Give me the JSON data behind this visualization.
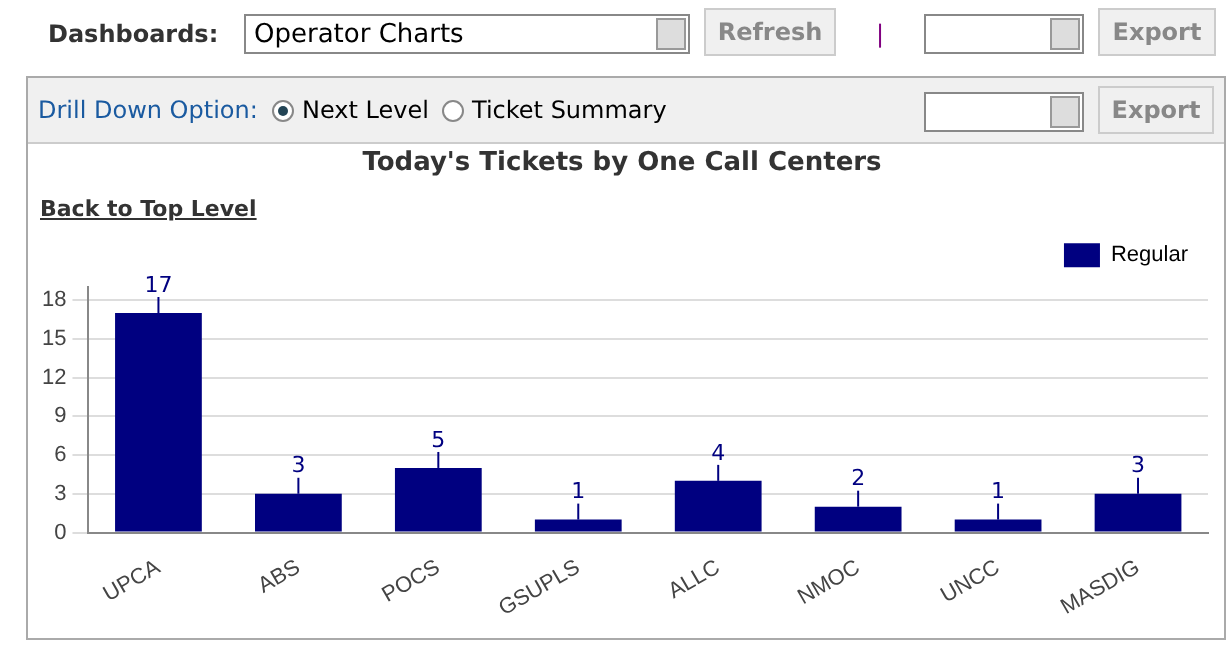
{
  "chart_data": {
    "type": "bar",
    "title": "Today's Tickets by One Call Centers",
    "categories": [
      "UPCA",
      "ABS",
      "POCS",
      "GSUPLS",
      "ALLC",
      "NMOC",
      "UNCC",
      "MASDIG"
    ],
    "series": [
      {
        "name": "Regular",
        "color": "#000080",
        "values": [
          17,
          3,
          5,
          1,
          4,
          2,
          1,
          3
        ]
      }
    ],
    "ylim": [
      0,
      19
    ],
    "yticks": [
      0,
      3,
      6,
      9,
      12,
      15,
      18
    ],
    "grid": "y",
    "legend": "top right",
    "data_labels": true,
    "annotations": [
      "Dashboards:",
      "Operator Charts",
      "Refresh",
      "|",
      "Export",
      "Drill Down Option:",
      "Next Level",
      "Ticket Summary",
      "Export",
      "Back to Top Level"
    ]
  }
}
